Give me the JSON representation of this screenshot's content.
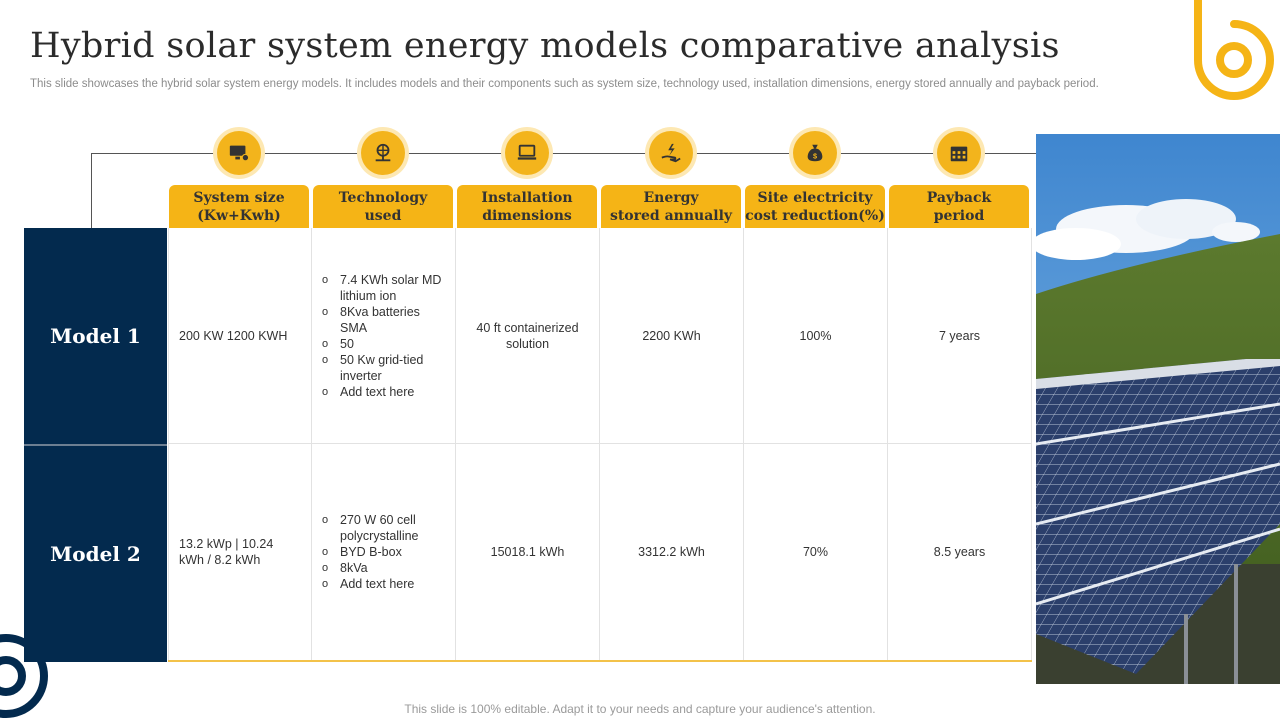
{
  "title": "Hybrid solar system energy models comparative analysis",
  "subtitle": "This slide showcases the hybrid solar system energy models. It includes models and their components such as system size, technology used, installation dimensions, energy stored annually and payback period.",
  "columns": [
    {
      "label_line1": "System size",
      "label_line2": "(Kw+Kwh)",
      "icon": "monitor-gear-icon"
    },
    {
      "label_line1": "Technology",
      "label_line2": "used",
      "icon": "globe-network-icon"
    },
    {
      "label_line1": "Installation",
      "label_line2": "dimensions",
      "icon": "laptop-icon"
    },
    {
      "label_line1": "Energy",
      "label_line2": "stored annually",
      "icon": "hand-energy-icon"
    },
    {
      "label_line1": "Site electricity",
      "label_line2": "cost reduction(%)",
      "icon": "money-bag-icon"
    },
    {
      "label_line1": "Payback",
      "label_line2": "period",
      "icon": "calendar-icon"
    }
  ],
  "rows": [
    {
      "model": "Model 1",
      "system_size": "200 KW 1200 KWH",
      "technology": [
        "7.4 KWh solar MD lithium ion",
        "8Kva batteries SMA",
        "50",
        "50 Kw grid-tied inverter",
        "Add text here"
      ],
      "installation": "40 ft containerized solution",
      "energy": "2200 KWh",
      "cost_reduction": "100%",
      "payback": "7 years"
    },
    {
      "model": "Model 2",
      "system_size": "13.2 kWp | 10.24 kWh / 8.2 kWh",
      "technology": [
        "270 W 60 cell polycrystalline",
        "BYD B-box",
        "8kVa",
        "Add text here"
      ],
      "installation": "15018.1 kWh",
      "energy": "3312.2 kWh",
      "cost_reduction": "70%",
      "payback": "8.5 years"
    }
  ],
  "footer": "This slide is 100% editable. Adapt it to your needs and capture your audience's attention.",
  "colors": {
    "accent": "#f5b416",
    "navy": "#032a4e",
    "icon_ring": "#fde8b3"
  }
}
